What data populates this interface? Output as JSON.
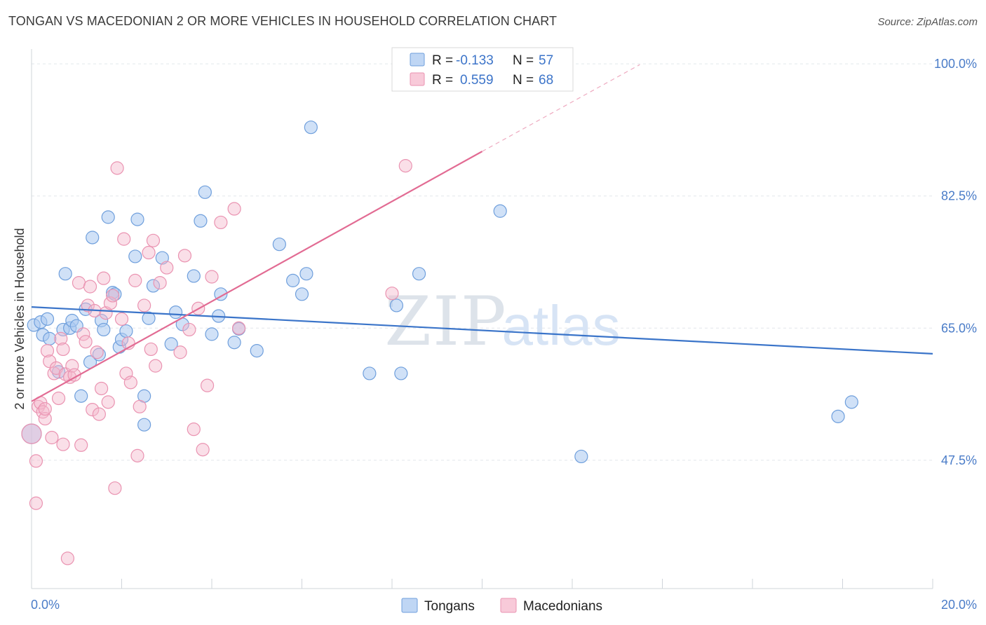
{
  "title": "TONGAN VS MACEDONIAN 2 OR MORE VEHICLES IN HOUSEHOLD CORRELATION CHART",
  "source": "Source: ZipAtlas.com",
  "watermark": {
    "zip": "ZIP",
    "atlas": "atlas"
  },
  "legend": {
    "rows": [
      {
        "r_label": "R =",
        "r_value": "-0.133",
        "n_label": "N =",
        "n_value": "57",
        "color": "#a9c8f0"
      },
      {
        "r_label": "R =",
        "r_value": "0.559",
        "n_label": "N =",
        "n_value": "68",
        "color": "#f5b8cc"
      }
    ]
  },
  "bottom_legend": [
    {
      "label": "Tongans",
      "color": "#a9c8f0"
    },
    {
      "label": "Macedonians",
      "color": "#f5b8cc"
    }
  ],
  "chart_data": {
    "type": "scatter",
    "title": "TONGAN VS MACEDONIAN 2 OR MORE VEHICLES IN HOUSEHOLD CORRELATION CHART",
    "xlabel": "",
    "ylabel": "2 or more Vehicles in Household",
    "xlim": [
      0,
      20
    ],
    "ylim": [
      30.5,
      101.5
    ],
    "x_tick_labels": [
      "0.0%",
      "20.0%"
    ],
    "y_ticks": [
      100.0,
      82.5,
      65.0,
      47.5
    ],
    "y_tick_labels": [
      "100.0%",
      "82.5%",
      "65.0%",
      "47.5%"
    ],
    "grid": true,
    "legend_position": "top-center",
    "series": [
      {
        "name": "Tongans",
        "color": "#7aa8e0",
        "trend": {
          "x": [
            0,
            20
          ],
          "y": [
            67.8,
            61.6
          ],
          "dashed_x": [],
          "dashed_y": []
        },
        "points": [
          [
            0.05,
            65.4
          ],
          [
            0.2,
            65.8
          ],
          [
            0.25,
            64.1
          ],
          [
            0.35,
            66.2
          ],
          [
            0.4,
            63.6
          ],
          [
            0.6,
            59.2
          ],
          [
            0.7,
            64.8
          ],
          [
            0.75,
            72.2
          ],
          [
            0.85,
            65.0
          ],
          [
            0.9,
            66.0
          ],
          [
            1.0,
            65.3
          ],
          [
            1.1,
            56.0
          ],
          [
            1.2,
            67.5
          ],
          [
            1.3,
            60.5
          ],
          [
            1.35,
            77.0
          ],
          [
            1.5,
            61.5
          ],
          [
            1.55,
            66.0
          ],
          [
            1.6,
            64.8
          ],
          [
            1.7,
            79.7
          ],
          [
            1.8,
            69.7
          ],
          [
            1.85,
            69.5
          ],
          [
            1.95,
            62.5
          ],
          [
            2.0,
            63.5
          ],
          [
            2.1,
            64.6
          ],
          [
            2.3,
            74.5
          ],
          [
            2.35,
            79.4
          ],
          [
            2.5,
            56.0
          ],
          [
            2.5,
            52.2
          ],
          [
            2.6,
            66.3
          ],
          [
            2.7,
            70.6
          ],
          [
            2.9,
            74.3
          ],
          [
            3.1,
            62.9
          ],
          [
            3.2,
            67.1
          ],
          [
            3.35,
            65.5
          ],
          [
            3.6,
            71.9
          ],
          [
            3.75,
            79.2
          ],
          [
            3.85,
            83.0
          ],
          [
            4.0,
            64.2
          ],
          [
            4.15,
            66.6
          ],
          [
            4.2,
            69.5
          ],
          [
            4.5,
            63.1
          ],
          [
            4.6,
            64.9
          ],
          [
            5.0,
            62.0
          ],
          [
            5.5,
            76.1
          ],
          [
            5.8,
            71.3
          ],
          [
            6.0,
            69.5
          ],
          [
            6.1,
            72.2
          ],
          [
            6.2,
            91.6
          ],
          [
            7.5,
            59.0
          ],
          [
            8.1,
            68.0
          ],
          [
            8.2,
            59.0
          ],
          [
            8.6,
            72.2
          ],
          [
            10.4,
            80.5
          ],
          [
            12.2,
            48.0
          ],
          [
            17.9,
            53.3
          ],
          [
            18.2,
            55.2
          ],
          [
            0.0,
            51.0
          ]
        ]
      },
      {
        "name": "Macedonians",
        "color": "#f097b4",
        "trend": {
          "x": [
            0,
            10.0
          ],
          "y": [
            55.3,
            88.4
          ],
          "dashed_x": [
            10.0,
            13.5
          ],
          "dashed_y": [
            88.4,
            99.9
          ]
        },
        "points": [
          [
            0.0,
            51.0
          ],
          [
            0.1,
            41.8
          ],
          [
            0.1,
            47.4
          ],
          [
            0.15,
            54.6
          ],
          [
            0.2,
            55.1
          ],
          [
            0.25,
            53.9
          ],
          [
            0.3,
            53.0
          ],
          [
            0.3,
            54.3
          ],
          [
            0.35,
            62.0
          ],
          [
            0.4,
            60.6
          ],
          [
            0.45,
            50.5
          ],
          [
            0.5,
            59.0
          ],
          [
            0.55,
            59.7
          ],
          [
            0.6,
            55.7
          ],
          [
            0.65,
            63.6
          ],
          [
            0.7,
            62.2
          ],
          [
            0.7,
            49.6
          ],
          [
            0.75,
            58.9
          ],
          [
            0.8,
            34.5
          ],
          [
            0.85,
            58.5
          ],
          [
            0.9,
            60.0
          ],
          [
            0.95,
            58.8
          ],
          [
            1.05,
            71.0
          ],
          [
            1.1,
            49.5
          ],
          [
            1.15,
            64.2
          ],
          [
            1.2,
            63.2
          ],
          [
            1.25,
            68.0
          ],
          [
            1.3,
            70.5
          ],
          [
            1.35,
            54.2
          ],
          [
            1.4,
            67.3
          ],
          [
            1.45,
            61.8
          ],
          [
            1.5,
            53.6
          ],
          [
            1.55,
            57.0
          ],
          [
            1.6,
            71.6
          ],
          [
            1.65,
            67.0
          ],
          [
            1.7,
            55.2
          ],
          [
            1.75,
            68.3
          ],
          [
            1.8,
            69.3
          ],
          [
            1.85,
            43.8
          ],
          [
            1.9,
            86.2
          ],
          [
            2.0,
            66.2
          ],
          [
            2.05,
            76.8
          ],
          [
            2.1,
            59.0
          ],
          [
            2.15,
            63.0
          ],
          [
            2.2,
            57.8
          ],
          [
            2.3,
            71.3
          ],
          [
            2.35,
            48.1
          ],
          [
            2.4,
            54.6
          ],
          [
            2.5,
            68.0
          ],
          [
            2.6,
            75.0
          ],
          [
            2.65,
            62.2
          ],
          [
            2.7,
            76.6
          ],
          [
            2.75,
            60.0
          ],
          [
            2.85,
            71.0
          ],
          [
            3.0,
            73.0
          ],
          [
            3.3,
            61.8
          ],
          [
            3.4,
            74.6
          ],
          [
            3.5,
            64.8
          ],
          [
            3.6,
            51.6
          ],
          [
            3.7,
            67.6
          ],
          [
            3.8,
            48.9
          ],
          [
            3.9,
            57.4
          ],
          [
            4.0,
            71.8
          ],
          [
            4.2,
            79.0
          ],
          [
            4.5,
            80.8
          ],
          [
            4.6,
            65.0
          ],
          [
            8.0,
            69.6
          ],
          [
            8.3,
            86.5
          ]
        ]
      }
    ]
  }
}
